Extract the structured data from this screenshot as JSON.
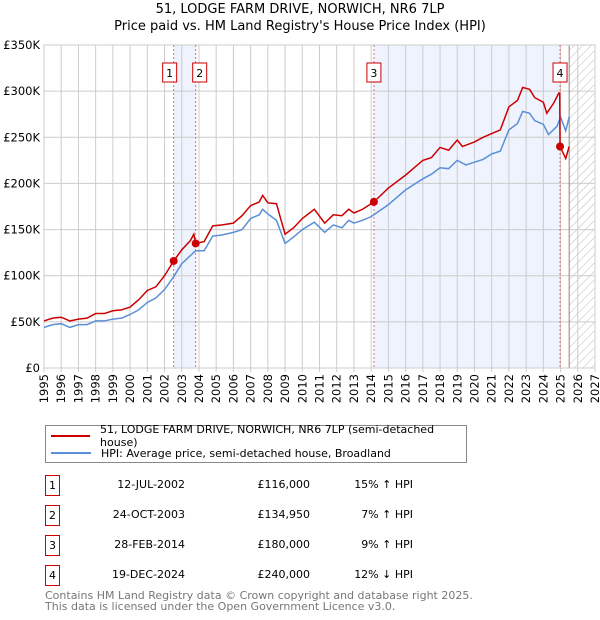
{
  "header": {
    "title": "51, LODGE FARM DRIVE, NORWICH, NR6 7LP",
    "subtitle": "Price paid vs. HM Land Registry's House Price Index (HPI)"
  },
  "chart_data": {
    "type": "line",
    "title": "51, LODGE FARM DRIVE, NORWICH, NR6 7LP",
    "xlim": [
      1995,
      2027
    ],
    "ylim": [
      0,
      350000
    ],
    "x_ticks": [
      "1995",
      "1996",
      "1997",
      "1998",
      "1999",
      "2000",
      "2001",
      "2002",
      "2003",
      "2004",
      "2005",
      "2006",
      "2007",
      "2008",
      "2009",
      "2010",
      "2011",
      "2012",
      "2013",
      "2014",
      "2015",
      "2016",
      "2017",
      "2018",
      "2019",
      "2020",
      "2021",
      "2022",
      "2023",
      "2024",
      "2025",
      "2026",
      "2027"
    ],
    "y_ticks": [
      {
        "v": 0,
        "label": "£0"
      },
      {
        "v": 50000,
        "label": "£50K"
      },
      {
        "v": 100000,
        "label": "£100K"
      },
      {
        "v": 150000,
        "label": "£150K"
      },
      {
        "v": 200000,
        "label": "£200K"
      },
      {
        "v": 250000,
        "label": "£250K"
      },
      {
        "v": 300000,
        "label": "£300K"
      },
      {
        "v": 350000,
        "label": "£350K"
      }
    ],
    "forecast_start": 2025.5,
    "shaded_ranges": [
      [
        2002.53,
        2003.81
      ],
      [
        2014.16,
        2024.97
      ]
    ],
    "colors": {
      "property": "#cc0000",
      "hpi": "#5b8fd6",
      "shade": "#eef3fd"
    },
    "series": [
      {
        "name": "51, LODGE FARM DRIVE, NORWICH, NR6 7LP (semi-detached house)",
        "x": [
          1995,
          1995.5,
          1996,
          1996.5,
          1997,
          1997.5,
          1998,
          1998.5,
          1999,
          1999.5,
          2000,
          2000.5,
          2001,
          2001.5,
          2002,
          2002.53,
          2003,
          2003.5,
          2003.7,
          2003.81,
          2004.3,
          2004.8,
          2005.3,
          2006,
          2006.5,
          2007,
          2007.5,
          2007.7,
          2008,
          2008.5,
          2009,
          2009.5,
          2010,
          2010.7,
          2011.3,
          2011.8,
          2012.3,
          2012.7,
          2013,
          2013.5,
          2014.16,
          2015,
          2016,
          2017,
          2017.5,
          2018,
          2018.5,
          2019,
          2019.3,
          2020,
          2020.5,
          2021,
          2021.5,
          2022,
          2022.5,
          2022.8,
          2023.2,
          2023.5,
          2024,
          2024.2,
          2024.6,
          2024.9,
          2024.95,
          2024.97,
          2025.3,
          2025.5
        ],
        "values": [
          51000,
          54000,
          55000,
          51000,
          53000,
          54000,
          59000,
          59000,
          62000,
          63000,
          66000,
          74000,
          84000,
          88000,
          100000,
          116000,
          128000,
          138000,
          145000,
          134950,
          137000,
          154000,
          155000,
          157000,
          165000,
          176000,
          180000,
          187000,
          179000,
          178000,
          145000,
          152000,
          162000,
          172000,
          157000,
          166000,
          165000,
          172000,
          168000,
          172000,
          180000,
          195000,
          209000,
          225000,
          228000,
          239000,
          236000,
          247000,
          240000,
          245000,
          250000,
          254000,
          258000,
          283000,
          290000,
          304000,
          302000,
          293000,
          288000,
          276000,
          287000,
          298000,
          298000,
          240000,
          227000,
          240000
        ]
      },
      {
        "name": "HPI: Average price, semi-detached house, Broadland",
        "x": [
          1995,
          1995.5,
          1996,
          1996.5,
          1997,
          1997.5,
          1998,
          1998.5,
          1999,
          1999.5,
          2000,
          2000.5,
          2001,
          2001.5,
          2002,
          2002.5,
          2003,
          2003.8,
          2004.3,
          2004.8,
          2005.3,
          2006,
          2006.5,
          2007,
          2007.5,
          2007.7,
          2008,
          2008.5,
          2009,
          2009.5,
          2010,
          2010.7,
          2011.3,
          2011.8,
          2012.3,
          2012.7,
          2013,
          2013.5,
          2014,
          2015,
          2016,
          2017,
          2017.5,
          2018,
          2018.5,
          2019,
          2019.5,
          2020,
          2020.5,
          2021,
          2021.5,
          2022,
          2022.5,
          2022.8,
          2023.2,
          2023.5,
          2024,
          2024.3,
          2024.8,
          2025,
          2025.3,
          2025.5
        ],
        "values": [
          44000,
          47000,
          48000,
          44000,
          47000,
          47000,
          51000,
          51000,
          53000,
          54000,
          58000,
          63000,
          71000,
          76000,
          85000,
          98000,
          113000,
          127000,
          127000,
          143000,
          144000,
          147000,
          150000,
          162000,
          166000,
          172000,
          167000,
          160000,
          135000,
          142000,
          150000,
          158000,
          147000,
          155000,
          152000,
          160000,
          157000,
          160000,
          164000,
          177000,
          193000,
          205000,
          210000,
          217000,
          216000,
          225000,
          220000,
          223000,
          226000,
          232000,
          235000,
          258000,
          265000,
          278000,
          276000,
          268000,
          264000,
          253000,
          262000,
          272000,
          257000,
          272000
        ]
      }
    ],
    "sales": [
      {
        "label": "1",
        "x": 2002.53,
        "value": 116000
      },
      {
        "label": "2",
        "x": 2003.81,
        "value": 134950
      },
      {
        "label": "3",
        "x": 2014.16,
        "value": 180000
      },
      {
        "label": "4",
        "x": 2024.97,
        "value": 240000
      }
    ]
  },
  "legend": {
    "property": "51, LODGE FARM DRIVE, NORWICH, NR6 7LP (semi-detached house)",
    "hpi": "HPI: Average price, semi-detached house, Broadland"
  },
  "transactions": [
    {
      "num": "1",
      "date": "12-JUL-2002",
      "price": "£116,000",
      "hpi": "15% ↑ HPI"
    },
    {
      "num": "2",
      "date": "24-OCT-2003",
      "price": "£134,950",
      "hpi": "7% ↑ HPI"
    },
    {
      "num": "3",
      "date": "28-FEB-2014",
      "price": "£180,000",
      "hpi": "9% ↑ HPI"
    },
    {
      "num": "4",
      "date": "19-DEC-2024",
      "price": "£240,000",
      "hpi": "12% ↓ HPI"
    }
  ],
  "footer": {
    "line1": "Contains HM Land Registry data © Crown copyright and database right 2025.",
    "line2": "This data is licensed under the Open Government Licence v3.0."
  }
}
